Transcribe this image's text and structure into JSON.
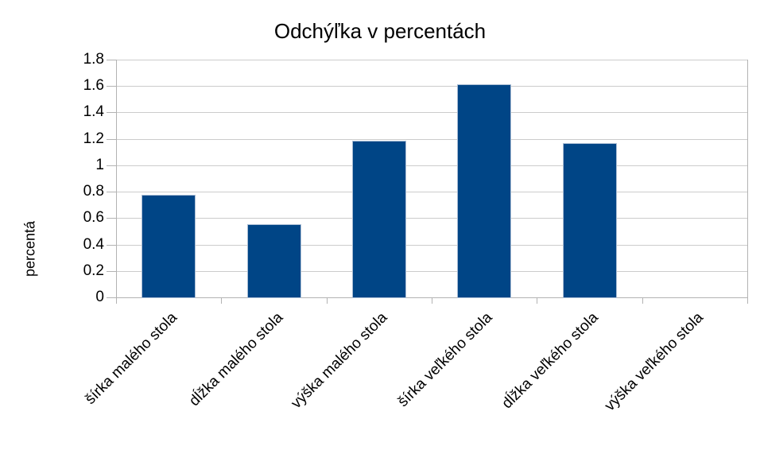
{
  "chart_data": {
    "type": "bar",
    "title": "Odchýľka v percentách",
    "xlabel": "",
    "ylabel": "percentá",
    "categories": [
      "šírka malého stola",
      "dĺžka malého stola",
      "výška malého stola",
      "šírka veľkého stola",
      "dĺžka veľkého stola",
      "výška veľkého stola"
    ],
    "values": [
      0.77,
      0.55,
      1.18,
      1.61,
      1.16,
      0
    ],
    "ylim": [
      0,
      1.8
    ],
    "ytick_step": 0.2,
    "ytick_labels": [
      "0",
      "0.2",
      "0.4",
      "0.6",
      "0.8",
      "1",
      "1.2",
      "1.4",
      "1.6",
      "1.8"
    ],
    "grid": "horizontal",
    "legend": "none",
    "colors": {
      "bar": "#004586",
      "bar_border": "#aabdd4",
      "gridline": "#cccccc",
      "axis": "#b3b3b3",
      "text": "#000000",
      "background": "#ffffff"
    }
  }
}
